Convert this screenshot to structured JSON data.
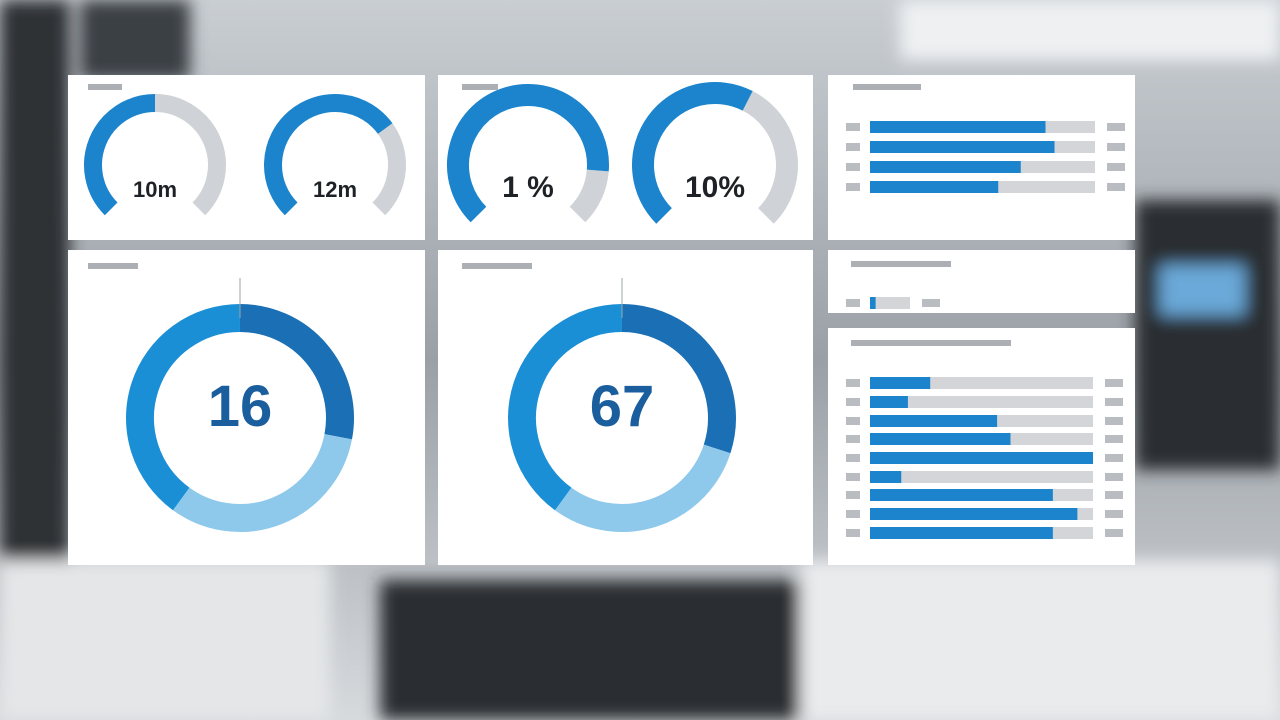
{
  "gauges": [
    {
      "label": "10m",
      "value": 50
    },
    {
      "label": "12m",
      "value": 70
    },
    {
      "label": "1 %",
      "value": 85
    },
    {
      "label": "10%",
      "value": 60
    }
  ],
  "donuts": [
    {
      "label": "16",
      "segments": [
        28,
        32,
        40
      ]
    },
    {
      "label": "67",
      "segments": [
        30,
        30,
        40
      ]
    }
  ],
  "donut_colors": [
    "#1a6fb5",
    "#8ec9ec",
    "#1b8fd6"
  ],
  "bar_color": "#1b84cc",
  "bars": {
    "top": [
      78,
      82,
      67,
      57
    ],
    "single": [
      14
    ],
    "bottom": [
      27,
      17,
      57,
      63,
      100,
      14,
      82,
      93,
      82
    ]
  }
}
